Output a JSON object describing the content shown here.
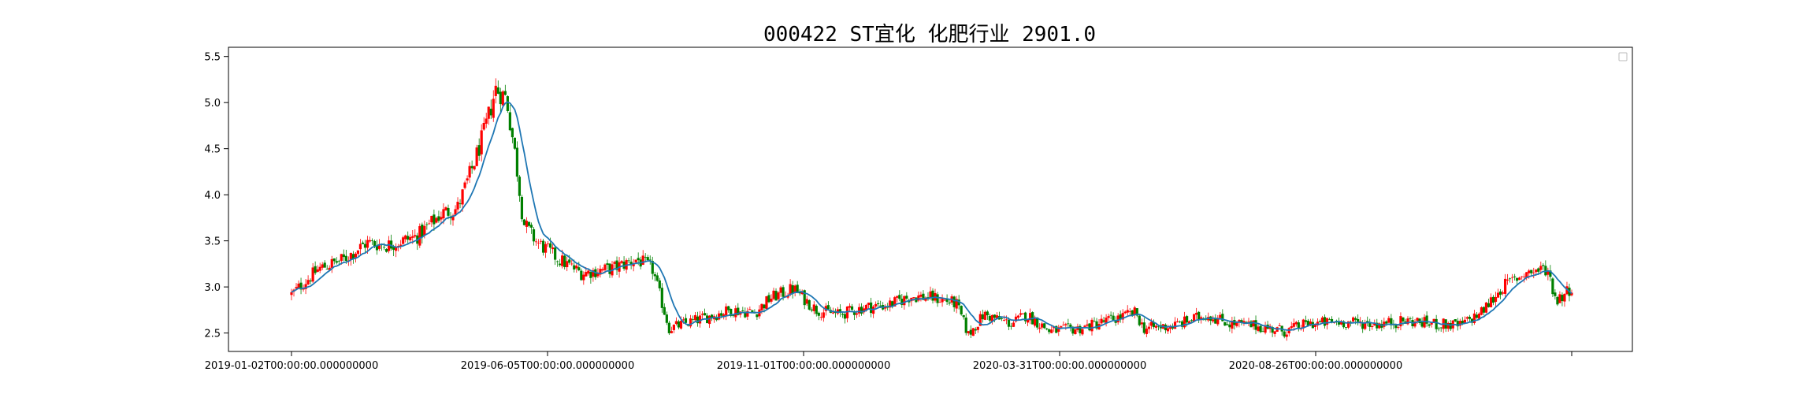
{
  "chart_data": {
    "type": "candlestick",
    "title": "000422 ST宜化 化肥行业 2901.0",
    "xlabel": "",
    "ylabel": "",
    "ylim": [
      2.3,
      5.6
    ],
    "y_ticks": [
      "2.5",
      "3.0",
      "3.5",
      "4.0",
      "4.5",
      "5.0",
      "5.5"
    ],
    "x_ticks": [
      "2019-01-02T00:00:00.000000000",
      "2019-06-05T00:00:00.000000000",
      "2019-11-01T00:00:00.000000000",
      "2020-03-31T00:00:00.000000000",
      "2020-08-26T00:00:00.000000000",
      ""
    ],
    "x_range": [
      "2019-01-02",
      "2021-04-15"
    ],
    "grid": false,
    "legend": "top-right",
    "up_color": "#ff0000",
    "down_color": "#008000",
    "ma_color": "#1f77b4",
    "price_path": [
      [
        "2019-01-02",
        2.92
      ],
      [
        "2019-01-20",
        3.2
      ],
      [
        "2019-02-05",
        3.3
      ],
      [
        "2019-02-20",
        3.48
      ],
      [
        "2019-03-05",
        3.45
      ],
      [
        "2019-03-25",
        3.55
      ],
      [
        "2019-04-10",
        3.8
      ],
      [
        "2019-04-20",
        3.85
      ],
      [
        "2019-04-30",
        4.3
      ],
      [
        "2019-05-08",
        4.7
      ],
      [
        "2019-05-15",
        5.15
      ],
      [
        "2019-05-22",
        5.05
      ],
      [
        "2019-05-28",
        4.4
      ],
      [
        "2019-06-02",
        3.7
      ],
      [
        "2019-06-10",
        3.5
      ],
      [
        "2019-06-25",
        3.3
      ],
      [
        "2019-07-10",
        3.15
      ],
      [
        "2019-07-30",
        3.2
      ],
      [
        "2019-08-15",
        3.3
      ],
      [
        "2019-08-25",
        3.2
      ],
      [
        "2019-09-05",
        2.55
      ],
      [
        "2019-09-25",
        2.65
      ],
      [
        "2019-10-15",
        2.75
      ],
      [
        "2019-10-31",
        2.72
      ],
      [
        "2019-11-10",
        2.88
      ],
      [
        "2019-11-25",
        2.98
      ],
      [
        "2019-12-10",
        2.75
      ],
      [
        "2019-12-25",
        2.7
      ],
      [
        "2020-01-10",
        2.78
      ],
      [
        "2020-01-25",
        2.8
      ],
      [
        "2020-02-10",
        2.9
      ],
      [
        "2020-02-25",
        2.88
      ],
      [
        "2020-03-10",
        2.82
      ],
      [
        "2020-03-18",
        2.48
      ],
      [
        "2020-03-28",
        2.7
      ],
      [
        "2020-04-15",
        2.6
      ],
      [
        "2020-04-25",
        2.7
      ],
      [
        "2020-05-10",
        2.52
      ],
      [
        "2020-05-30",
        2.55
      ],
      [
        "2020-06-20",
        2.65
      ],
      [
        "2020-07-05",
        2.72
      ],
      [
        "2020-07-10",
        2.55
      ],
      [
        "2020-07-30",
        2.58
      ],
      [
        "2020-08-20",
        2.7
      ],
      [
        "2020-09-05",
        2.6
      ],
      [
        "2020-09-20",
        2.58
      ],
      [
        "2020-10-10",
        2.52
      ],
      [
        "2020-10-25",
        2.6
      ],
      [
        "2020-11-15",
        2.62
      ],
      [
        "2020-12-10",
        2.6
      ],
      [
        "2020-12-30",
        2.63
      ],
      [
        "2021-01-15",
        2.6
      ],
      [
        "2021-02-01",
        2.58
      ],
      [
        "2021-02-15",
        2.72
      ],
      [
        "2021-03-01",
        3.0
      ],
      [
        "2021-03-15",
        3.15
      ],
      [
        "2021-03-30",
        3.2
      ],
      [
        "2021-04-05",
        2.85
      ],
      [
        "2021-04-15",
        3.0
      ]
    ]
  }
}
